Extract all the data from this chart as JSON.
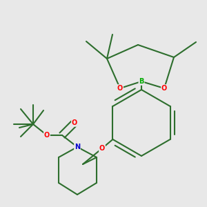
{
  "background_color": "#e8e8e8",
  "bond_color": "#2d6e2d",
  "bond_width": 1.5,
  "atom_colors": {
    "O": "#ff0000",
    "N": "#0000cc",
    "B": "#00aa00",
    "C": "#2d6e2d"
  }
}
